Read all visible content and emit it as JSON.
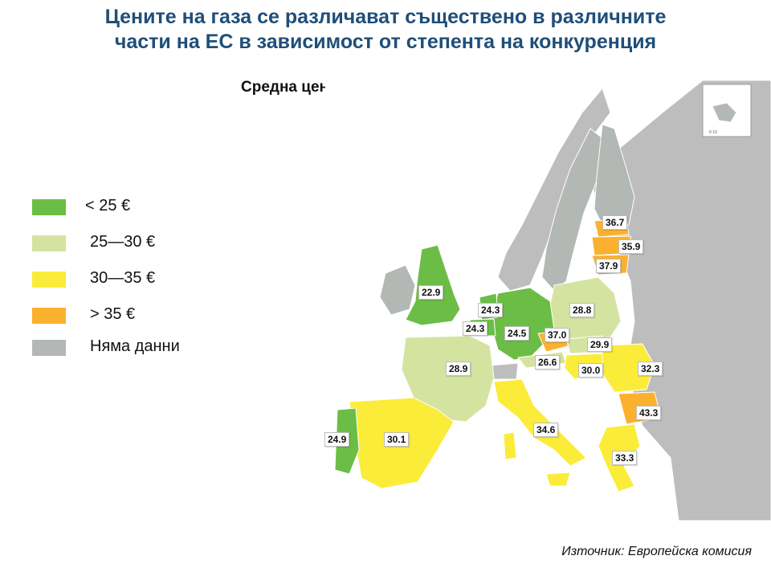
{
  "title_line1": "Цените на газа се различават съществено в различните",
  "title_line2": "части на ЕС в зависимост от степента на конкуренция",
  "subtitle": "Средна цена на газа в €/MWh",
  "colors": {
    "under25": "#6cbd45",
    "r25_30": "#d5e3a0",
    "r30_35": "#fbec3a",
    "over35": "#fbb12e",
    "nodata": "#b3b8b5",
    "sea": "#ffffff",
    "nonEU": "#bdbdbd"
  },
  "legend": [
    {
      "label": "< 25 €",
      "color_key": "under25"
    },
    {
      "label": "25—30 €",
      "color_key": "r25_30"
    },
    {
      "label": "30—35 €",
      "color_key": "r30_35"
    },
    {
      "label": "> 35 €",
      "color_key": "over35"
    },
    {
      "label": "Няма данни",
      "color_key": "nodata"
    }
  ],
  "map_values": {
    "uk": "22.9",
    "netherlands": "24.3",
    "belgium": "24.3",
    "germany": "24.5",
    "czechia": "37.0",
    "poland": "28.8",
    "slovakia": "29.9",
    "austria": "26.6",
    "hungary": "30.0",
    "romania": "32.3",
    "bulgaria": "43.3",
    "greece": "33.3",
    "italy": "34.6",
    "france": "28.9",
    "spain": "30.1",
    "portugal": "24.9",
    "estonia": "36.7",
    "latvia": "35.9",
    "lithuania": "37.9"
  },
  "inset_scale": "0  10",
  "source": "Източник: Европейска комисия"
}
